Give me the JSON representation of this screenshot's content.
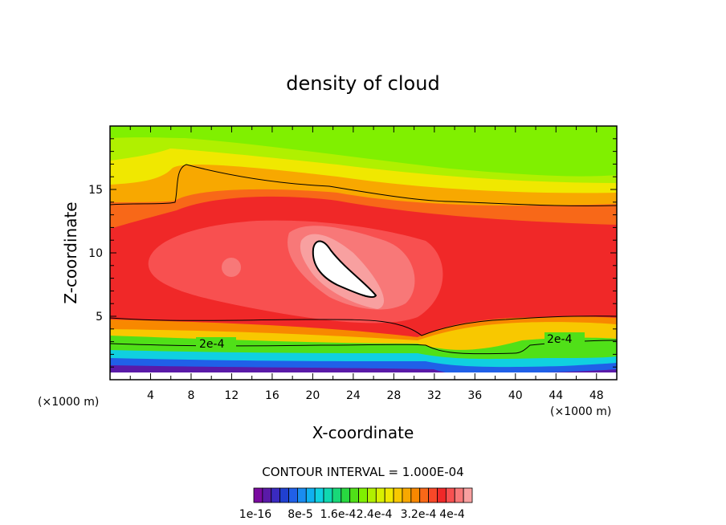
{
  "chart_data": {
    "type": "heatmap",
    "title": "density of cloud",
    "xlabel": "X-coordinate",
    "ylabel": "Z-coordinate",
    "x_unit": "(×1000 m)",
    "y_unit": "(×1000 m)",
    "xlim": [
      0,
      50
    ],
    "ylim": [
      0,
      20
    ],
    "x_ticks": [
      "4",
      "8",
      "12",
      "16",
      "20",
      "24",
      "28",
      "32",
      "36",
      "40",
      "44",
      "48"
    ],
    "y_ticks": [
      "5",
      "10",
      "15"
    ],
    "contour_interval_text": "CONTOUR INTERVAL = 1.000E-04",
    "contour_labels": [
      "2e-4",
      "2e-4"
    ],
    "colorbar_ticks": [
      "1e-16",
      "8e-5",
      "1.6e-4",
      "2.4e-4",
      "3.2e-4",
      "4e-4"
    ],
    "colorbar_colors": [
      "#7a0aa0",
      "#5a1aa8",
      "#3a2ac0",
      "#2040d0",
      "#2060e8",
      "#1a8cf0",
      "#10b0f0",
      "#10d0e0",
      "#10d8b0",
      "#18d878",
      "#28d840",
      "#50e018",
      "#80f000",
      "#b0f000",
      "#d8f000",
      "#f0e800",
      "#f8c800",
      "#f8a800",
      "#f88800",
      "#f86818",
      "#f84828",
      "#f02828",
      "#f85050",
      "#f87878",
      "#f8a0a0"
    ],
    "field_summary": {
      "max_region": {
        "x_range": [
          20,
          27
        ],
        "z_range": [
          6.5,
          11
        ],
        "value_min": "4e-4"
      },
      "high_band_z": [
        5,
        14
      ],
      "low_values_near_ground_z": [
        0,
        2
      ]
    }
  }
}
